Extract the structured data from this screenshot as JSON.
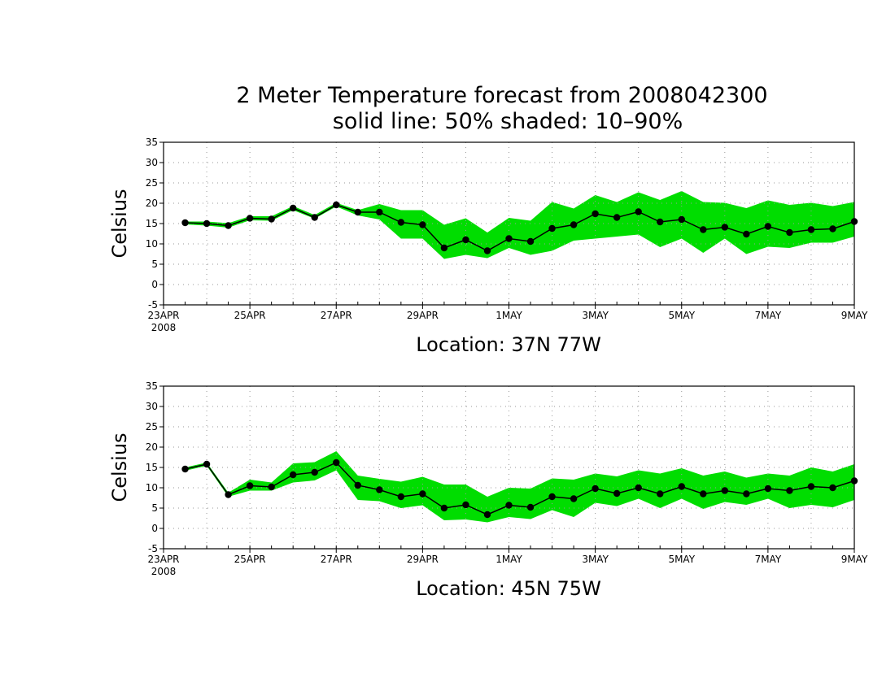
{
  "title_line1": "2 Meter Temperature forecast from 2008042300",
  "title_line2": "solid line: 50% shaded: 10–90%",
  "colors": {
    "band": "#00dd00",
    "line": "#000000",
    "grid": "#9a9a9a"
  },
  "chart_data": [
    {
      "type": "line",
      "location": "Location: 37N 77W",
      "ylabel": "Celsius",
      "xlabel": "",
      "ylim": [
        -5,
        35
      ],
      "yticks": [
        "-5",
        "0",
        "5",
        "10",
        "15",
        "20",
        "25",
        "30",
        "35"
      ],
      "xlim": [
        "2008-04-23T00",
        "2008-05-09T00"
      ],
      "xticks": [
        "23APR",
        "25APR",
        "27APR",
        "29APR",
        "1MAY",
        "3MAY",
        "5MAY",
        "7MAY",
        "9MAY"
      ],
      "xtick_sub": "2008",
      "grid": true,
      "x": [
        "2008-04-23T12",
        "2008-04-24T00",
        "2008-04-24T12",
        "2008-04-25T00",
        "2008-04-25T12",
        "2008-04-26T00",
        "2008-04-26T12",
        "2008-04-27T00",
        "2008-04-27T12",
        "2008-04-28T00",
        "2008-04-28T12",
        "2008-04-29T00",
        "2008-04-29T12",
        "2008-04-30T00",
        "2008-04-30T12",
        "2008-05-01T00",
        "2008-05-01T12",
        "2008-05-02T00",
        "2008-05-02T12",
        "2008-05-03T00",
        "2008-05-03T12",
        "2008-05-04T00",
        "2008-05-04T12",
        "2008-05-05T00",
        "2008-05-05T12",
        "2008-05-06T00",
        "2008-05-06T12",
        "2008-05-07T00",
        "2008-05-07T12",
        "2008-05-08T00",
        "2008-05-08T12",
        "2008-05-09T00"
      ],
      "series": [
        {
          "name": "50%",
          "values": [
            15.2,
            15.0,
            14.5,
            16.3,
            16.1,
            18.8,
            16.5,
            19.6,
            17.8,
            17.8,
            15.3,
            14.7,
            9.0,
            11.0,
            8.3,
            11.3,
            10.6,
            13.8,
            14.7,
            17.4,
            16.5,
            17.9,
            15.4,
            16.0,
            13.5,
            14.1,
            12.4,
            14.3,
            12.8,
            13.5,
            13.7,
            15.5
          ]
        },
        {
          "name": "10%",
          "values": [
            14.8,
            14.5,
            14.0,
            15.8,
            15.7,
            18.3,
            16.2,
            19.2,
            17.0,
            16.0,
            11.3,
            11.3,
            6.3,
            7.3,
            6.5,
            9.0,
            7.3,
            8.3,
            10.8,
            11.3,
            11.8,
            12.3,
            9.2,
            11.3,
            7.8,
            11.3,
            7.5,
            9.3,
            9.0,
            10.3,
            10.3,
            11.8
          ]
        },
        {
          "name": "90%",
          "values": [
            15.5,
            15.5,
            15.1,
            16.8,
            16.8,
            19.3,
            17.1,
            20.1,
            18.3,
            19.8,
            18.3,
            18.3,
            14.7,
            16.3,
            12.8,
            16.4,
            15.7,
            20.3,
            18.7,
            22.0,
            20.3,
            22.7,
            20.8,
            23.0,
            20.3,
            20.1,
            18.8,
            20.7,
            19.6,
            20.1,
            19.3,
            20.3
          ]
        }
      ]
    },
    {
      "type": "line",
      "location": "Location: 45N 75W",
      "ylabel": "Celsius",
      "xlabel": "",
      "ylim": [
        -5,
        35
      ],
      "yticks": [
        "-5",
        "0",
        "5",
        "10",
        "15",
        "20",
        "25",
        "30",
        "35"
      ],
      "xlim": [
        "2008-04-23T00",
        "2008-05-09T00"
      ],
      "xticks": [
        "23APR",
        "25APR",
        "27APR",
        "29APR",
        "1MAY",
        "3MAY",
        "5MAY",
        "7MAY",
        "9MAY"
      ],
      "xtick_sub": "2008",
      "grid": true,
      "x": [
        "2008-04-23T12",
        "2008-04-24T00",
        "2008-04-24T12",
        "2008-04-25T00",
        "2008-04-25T12",
        "2008-04-26T00",
        "2008-04-26T12",
        "2008-04-27T00",
        "2008-04-27T12",
        "2008-04-28T00",
        "2008-04-28T12",
        "2008-04-29T00",
        "2008-04-29T12",
        "2008-04-30T00",
        "2008-04-30T12",
        "2008-05-01T00",
        "2008-05-01T12",
        "2008-05-02T00",
        "2008-05-02T12",
        "2008-05-03T00",
        "2008-05-03T12",
        "2008-05-04T00",
        "2008-05-04T12",
        "2008-05-05T00",
        "2008-05-05T12",
        "2008-05-06T00",
        "2008-05-06T12",
        "2008-05-07T00",
        "2008-05-07T12",
        "2008-05-08T00",
        "2008-05-08T12",
        "2008-05-09T00"
      ],
      "series": [
        {
          "name": "50%",
          "values": [
            14.6,
            15.8,
            8.3,
            10.5,
            10.2,
            13.2,
            13.8,
            16.2,
            10.6,
            9.5,
            7.8,
            8.5,
            5.0,
            5.8,
            3.4,
            5.7,
            5.2,
            7.8,
            7.3,
            9.8,
            8.6,
            10.0,
            8.5,
            10.3,
            8.5,
            9.3,
            8.5,
            9.8,
            9.3,
            10.3,
            10.0,
            11.7
          ]
        },
        {
          "name": "10%",
          "values": [
            14.2,
            15.4,
            7.8,
            9.3,
            9.3,
            11.3,
            11.8,
            14.3,
            7.0,
            6.7,
            5.0,
            5.7,
            2.0,
            2.2,
            1.5,
            2.8,
            2.3,
            4.5,
            2.8,
            6.3,
            5.5,
            7.3,
            5.0,
            7.3,
            4.8,
            6.5,
            5.8,
            7.3,
            5.0,
            5.8,
            5.2,
            7.0
          ]
        },
        {
          "name": "90%",
          "values": [
            15.0,
            16.2,
            8.8,
            12.0,
            11.3,
            16.0,
            16.3,
            19.0,
            13.0,
            12.2,
            11.5,
            12.7,
            10.8,
            10.8,
            7.8,
            10.0,
            9.8,
            12.3,
            12.0,
            13.5,
            12.8,
            14.3,
            13.5,
            14.8,
            13.0,
            14.0,
            12.5,
            13.5,
            13.0,
            15.0,
            14.0,
            15.8
          ]
        }
      ]
    }
  ]
}
